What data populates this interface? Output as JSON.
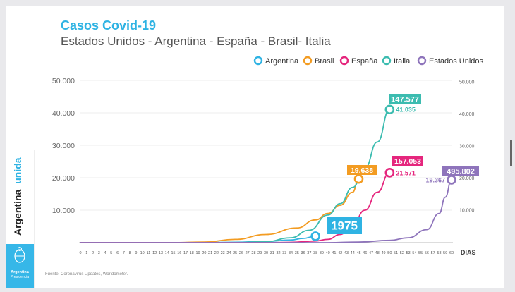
{
  "header": {
    "title": "Casos Covid-19",
    "subtitle": "Estados Unidos - Argentina - España - Brasil- Italia"
  },
  "sidebar": {
    "brand_left": "Argentina",
    "brand_right": "unida",
    "logo_line1": "Argentina",
    "logo_line2": "Presidencia"
  },
  "footer": {
    "source": "Fuente: Coronavirus Updates, Worldometer."
  },
  "colors": {
    "title": "#2fb3e3",
    "argentina": "#2fb3e3",
    "brasil": "#f39c22",
    "espana": "#e5267d",
    "italia": "#3cbcb0",
    "estados_unidos": "#8e74bb"
  },
  "chart_data": {
    "type": "line",
    "title": "Casos Covid-19",
    "subtitle": "Estados Unidos - Argentina - España - Brasil- Italia",
    "xlabel": "DIAS",
    "ylabel": "",
    "xlim": [
      0,
      60
    ],
    "ylim_left": [
      0,
      50000
    ],
    "ylim_right": [
      0,
      50000
    ],
    "x_ticks": [
      0,
      1,
      2,
      3,
      4,
      5,
      6,
      7,
      8,
      9,
      10,
      11,
      12,
      13,
      14,
      15,
      16,
      17,
      18,
      19,
      20,
      21,
      22,
      23,
      24,
      25,
      26,
      27,
      28,
      29,
      30,
      31,
      32,
      33,
      34,
      35,
      36,
      37,
      38,
      39,
      40,
      41,
      42,
      43,
      44,
      45,
      46,
      47,
      48,
      49,
      50,
      51,
      52,
      53,
      54,
      55,
      56,
      57,
      58,
      59,
      60
    ],
    "y_ticks_left": [
      {
        "value": 10000,
        "label": "10.000"
      },
      {
        "value": 20000,
        "label": "20.000"
      },
      {
        "value": 30000,
        "label": "30.000"
      },
      {
        "value": 40000,
        "label": "40.000"
      },
      {
        "value": 50000,
        "label": "50.000"
      }
    ],
    "y_ticks_right": [
      {
        "value": 10000,
        "label": "10.000"
      },
      {
        "value": 20000,
        "label": "20.000"
      },
      {
        "value": 30000,
        "label": "30.000"
      },
      {
        "value": 40000,
        "label": "40.000"
      },
      {
        "value": 50000,
        "label": "50.000"
      }
    ],
    "legend_position": "top-right",
    "grid": true,
    "series": [
      {
        "name": "Argentina",
        "color": "#2fb3e3",
        "points": [
          [
            0,
            0
          ],
          [
            10,
            0
          ],
          [
            20,
            50
          ],
          [
            25,
            120
          ],
          [
            30,
            400
          ],
          [
            34,
            800
          ],
          [
            36,
            1300
          ],
          [
            38,
            1975
          ]
        ],
        "end_marker": true,
        "callout_value": "1975",
        "callout_style": "box"
      },
      {
        "name": "Brasil",
        "color": "#f39c22",
        "points": [
          [
            0,
            0
          ],
          [
            15,
            0
          ],
          [
            20,
            200
          ],
          [
            25,
            1000
          ],
          [
            30,
            2500
          ],
          [
            35,
            4500
          ],
          [
            38,
            7000
          ],
          [
            40,
            9000
          ],
          [
            42,
            11500
          ],
          [
            44,
            15500
          ],
          [
            45,
            19638
          ]
        ],
        "end_marker": true,
        "callout_value": "19.638",
        "callout_style": "box"
      },
      {
        "name": "España",
        "color": "#e5267d",
        "points": [
          [
            0,
            0
          ],
          [
            30,
            0
          ],
          [
            34,
            100
          ],
          [
            38,
            500
          ],
          [
            40,
            1000
          ],
          [
            42,
            2500
          ],
          [
            44,
            5500
          ],
          [
            46,
            10000
          ],
          [
            48,
            15500
          ],
          [
            50,
            21571
          ]
        ],
        "end_marker": true,
        "callout_value": "157.053",
        "callout_style": "box",
        "end_label": "21.571"
      },
      {
        "name": "Italia",
        "color": "#3cbcb0",
        "points": [
          [
            0,
            0
          ],
          [
            25,
            0
          ],
          [
            30,
            300
          ],
          [
            34,
            1500
          ],
          [
            37,
            3800
          ],
          [
            40,
            8500
          ],
          [
            42,
            12000
          ],
          [
            44,
            17000
          ],
          [
            46,
            23000
          ],
          [
            48,
            31000
          ],
          [
            50,
            41035
          ]
        ],
        "end_marker": true,
        "callout_value": "147.577",
        "callout_style": "box",
        "end_label": "41.035"
      },
      {
        "name": "Estados Unidos",
        "color": "#8e74bb",
        "points": [
          [
            0,
            0
          ],
          [
            40,
            0
          ],
          [
            45,
            200
          ],
          [
            50,
            700
          ],
          [
            53,
            1500
          ],
          [
            56,
            4000
          ],
          [
            58,
            9000
          ],
          [
            59,
            14000
          ],
          [
            60,
            19367
          ]
        ],
        "end_marker": true,
        "callout_value": "495.802",
        "callout_style": "box",
        "end_label": "19.367"
      }
    ]
  }
}
